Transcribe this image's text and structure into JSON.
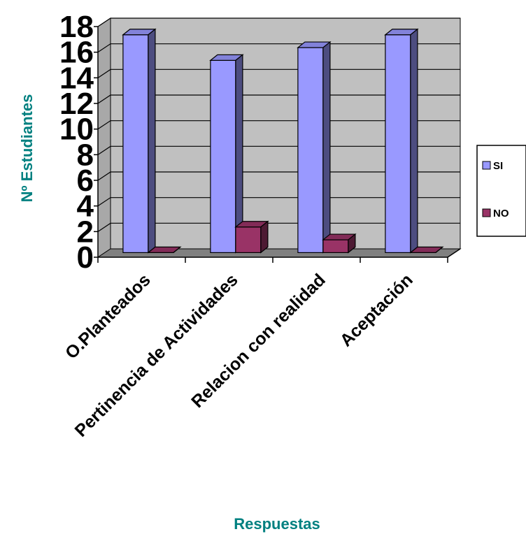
{
  "chart_data": {
    "type": "bar",
    "style": "3d-clustered-column",
    "categories": [
      "O.Planteados",
      "Pertinencia de Actividades",
      "Relacion con realidad",
      "Aceptación"
    ],
    "series": [
      {
        "name": "SI",
        "values": [
          17,
          15,
          16,
          17
        ],
        "color": "#9999ff"
      },
      {
        "name": "NO",
        "values": [
          0,
          2,
          1,
          0
        ],
        "color": "#993366"
      }
    ],
    "xlabel": "Respuestas",
    "ylabel": "Nº Estudiantes",
    "ylim": [
      0,
      18
    ],
    "yticks": [
      "0",
      "2",
      "4",
      "6",
      "8",
      "10",
      "12",
      "14",
      "16",
      "18"
    ],
    "grid": true,
    "legend_position": "right",
    "colors": {
      "wall": "#c0c0c0",
      "floor": "#808080",
      "axis_title": "#008080"
    }
  }
}
